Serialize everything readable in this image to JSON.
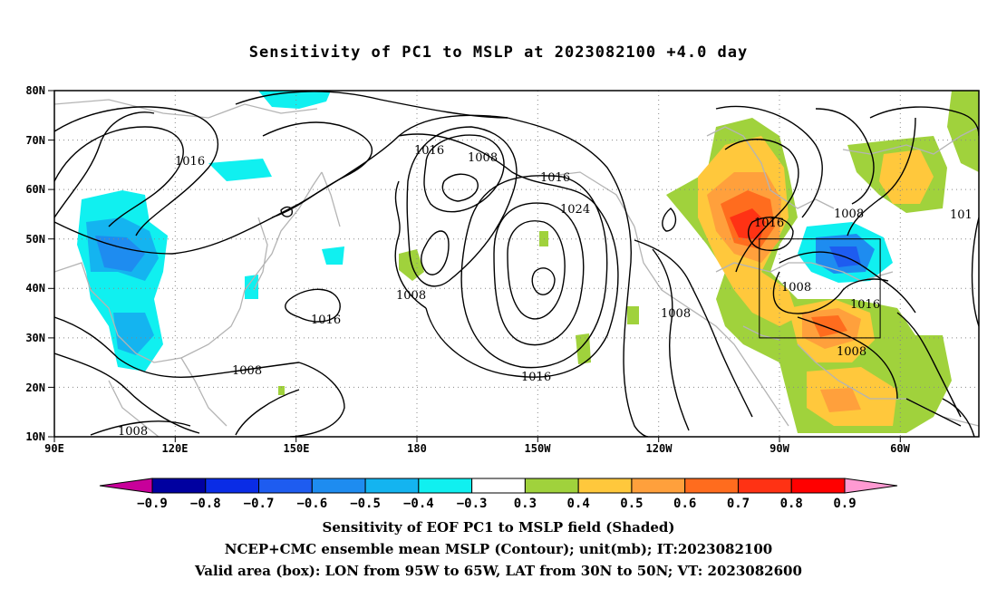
{
  "title": "Sensitivity of PC1 to MSLP at 2023082100 +4.0 day",
  "lat_labels": [
    "80N",
    "70N",
    "60N",
    "50N",
    "40N",
    "30N",
    "20N",
    "10N"
  ],
  "lon_labels": [
    "90E",
    "120E",
    "150E",
    "180",
    "150W",
    "120W",
    "90W",
    "60W"
  ],
  "contour_labels": [
    {
      "text": "1016",
      "id": "c1016-a"
    },
    {
      "text": "1016",
      "id": "c1016-b"
    },
    {
      "text": "1008",
      "id": "c1008-a"
    },
    {
      "text": "1016",
      "id": "c1016-c"
    },
    {
      "text": "1024",
      "id": "c1024"
    },
    {
      "text": "1008",
      "id": "c1008-b"
    },
    {
      "text": "1016",
      "id": "c1016-d"
    },
    {
      "text": "1008",
      "id": "c1008-c"
    },
    {
      "text": "1016",
      "id": "c1016-e"
    },
    {
      "text": "1008",
      "id": "c1008-d"
    },
    {
      "text": "1016",
      "id": "c1016-f"
    },
    {
      "text": "1008",
      "id": "c1008-e"
    },
    {
      "text": "1008",
      "id": "c1008-f"
    },
    {
      "text": "1016",
      "id": "c1016-g"
    },
    {
      "text": "1008",
      "id": "c1008-g"
    },
    {
      "text": "1008",
      "id": "c1008-h"
    },
    {
      "text": "101",
      "id": "c101"
    }
  ],
  "colorbar": {
    "labels": [
      "-0.9",
      "-0.8",
      "-0.7",
      "-0.6",
      "-0.5",
      "-0.4",
      "-0.3",
      "0.3",
      "0.4",
      "0.5",
      "0.6",
      "0.7",
      "0.8",
      "0.9"
    ],
    "colors": [
      "#0000a0",
      "#0a2ce6",
      "#1e5cf0",
      "#1e8cf0",
      "#14b4f0",
      "#10f0f0",
      "#ffffff",
      "#a0d23c",
      "#ffc83c",
      "#ffa03c",
      "#ff6c1e",
      "#ff3214",
      "#ff0000"
    ],
    "low_end_color": "#c8009a",
    "high_end_color": "#ff9ad2"
  },
  "captions": [
    "Sensitivity of EOF PC1 to MSLP field (Shaded)",
    "NCEP+CMC ensemble mean MSLP (Contour); unit(mb); IT:2023082100",
    "Valid area (box): LON from 95W to 65W, LAT from 30N to 50N; VT: 2023082600"
  ]
}
